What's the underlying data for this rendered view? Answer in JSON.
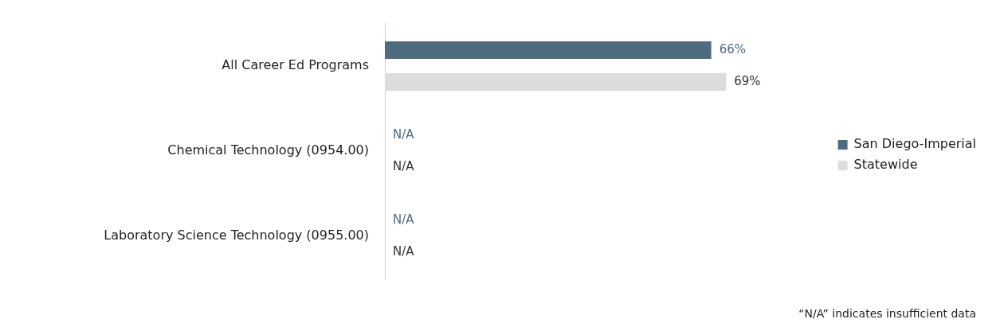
{
  "chart_data": {
    "type": "bar",
    "orientation": "horizontal",
    "categories": [
      "All Career Ed Programs",
      "Chemical Technology (0954.00)",
      "Laboratory Science Technology (0955.00)"
    ],
    "series": [
      {
        "name": "San Diego-Imperial",
        "color": "#4f6b80",
        "values": [
          66,
          null,
          null
        ],
        "value_labels": [
          "66%",
          "N/A",
          "N/A"
        ]
      },
      {
        "name": "Statewide",
        "color": "#dcdcdc",
        "values": [
          69,
          null,
          null
        ],
        "value_labels": [
          "69%",
          "N/A",
          "N/A"
        ]
      }
    ],
    "tick_labels": "y",
    "legend": "right",
    "annotations": [
      "“N/A” indicates insufficient data"
    ]
  }
}
